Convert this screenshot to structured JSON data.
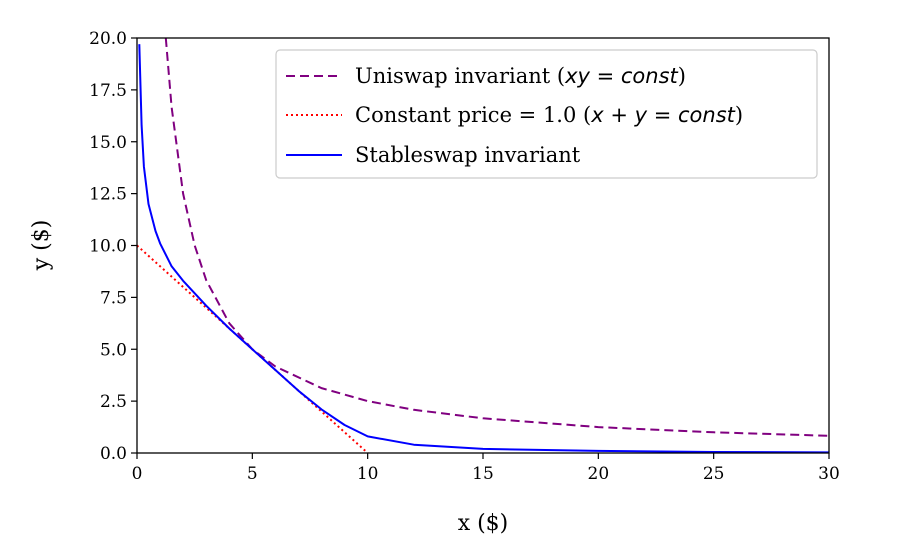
{
  "chart_data": {
    "type": "line",
    "xlabel": "x ($)",
    "ylabel": "y ($)",
    "xlim": [
      0,
      30
    ],
    "ylim": [
      0,
      20
    ],
    "x_ticks": [
      "0",
      "5",
      "10",
      "15",
      "20",
      "25",
      "30"
    ],
    "y_ticks": [
      "0.0",
      "2.5",
      "5.0",
      "7.5",
      "10.0",
      "12.5",
      "15.0",
      "17.5",
      "20.0"
    ],
    "grid": false,
    "legend_position": "top-right",
    "series": [
      {
        "name": "Uniswap invariant (xy = const)",
        "legend_parts": [
          "Uniswap invariant (",
          "xy",
          " = ",
          "const",
          ")"
        ],
        "color": "#800080",
        "style": "dashed",
        "x": [
          1.25,
          1.5,
          2,
          2.5,
          3,
          4,
          5,
          6,
          8,
          10,
          12,
          15,
          20,
          25,
          30
        ],
        "y": [
          20,
          16.67,
          12.5,
          10,
          8.33,
          6.25,
          5,
          4.17,
          3.13,
          2.5,
          2.08,
          1.67,
          1.25,
          1,
          0.83
        ]
      },
      {
        "name": "Constant price = 1.0 (x + y = const)",
        "legend_parts": [
          "Constant price = 1.0 (",
          "x",
          " + ",
          "y",
          " = ",
          "const",
          ")"
        ],
        "color": "#ff0000",
        "style": "dotted",
        "x": [
          0,
          10
        ],
        "y": [
          10,
          0
        ]
      },
      {
        "name": "Stableswap invariant",
        "legend_parts": [
          "Stableswap invariant"
        ],
        "color": "#0000ff",
        "style": "solid",
        "x": [
          0.1,
          0.2,
          0.3,
          0.5,
          0.8,
          1,
          1.5,
          2,
          3,
          4,
          5,
          6,
          7,
          8,
          9,
          10,
          12,
          15,
          20,
          25,
          30
        ],
        "y": [
          19.7,
          15.8,
          13.8,
          12.0,
          10.7,
          10.1,
          9.0,
          8.3,
          7.1,
          6.0,
          5.0,
          4.0,
          3.0,
          2.1,
          1.35,
          0.8,
          0.4,
          0.2,
          0.1,
          0.05,
          0.03
        ]
      }
    ]
  }
}
